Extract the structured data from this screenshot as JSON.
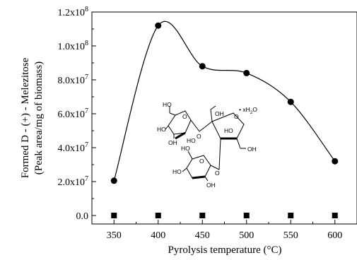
{
  "chart_data": {
    "type": "scatter",
    "xlabel": "Pyrolysis temperature (°C)",
    "ylabel_line1": "Formed D - (+) - Melezitose",
    "ylabel_line2": "(Peak area/mg of biomass)",
    "xlim": [
      325,
      625
    ],
    "ylim": [
      -5000000,
      120000000
    ],
    "x_ticks": [
      350,
      400,
      450,
      500,
      550,
      600
    ],
    "x_tick_labels": [
      "350",
      "400",
      "450",
      "500",
      "550",
      "600"
    ],
    "y_ticks": [
      0,
      20000000,
      40000000,
      60000000,
      80000000,
      100000000,
      120000000
    ],
    "y_tick_labels": [
      {
        "mantissa": "0.0",
        "exp": ""
      },
      {
        "mantissa": "2.0x10",
        "exp": "7"
      },
      {
        "mantissa": "4.0x10",
        "exp": "7"
      },
      {
        "mantissa": "6.0x10",
        "exp": "7"
      },
      {
        "mantissa": "8.0x10",
        "exp": "7"
      },
      {
        "mantissa": "1.0x10",
        "exp": "8"
      },
      {
        "mantissa": "1.2x10",
        "exp": "8"
      }
    ],
    "series": [
      {
        "marker": "circle",
        "smooth_line": true,
        "x": [
          350,
          400,
          450,
          500,
          550,
          600
        ],
        "y": [
          20500000,
          112000000,
          88000000,
          84000000,
          67000000,
          32000000
        ]
      },
      {
        "marker": "square",
        "smooth_line": false,
        "x": [
          350,
          400,
          450,
          500,
          550,
          600
        ],
        "y": [
          0,
          0,
          0,
          0,
          0,
          0
        ]
      }
    ],
    "grid": false,
    "legend": "none",
    "colors": {
      "marks": "#000000",
      "background": "#ffffff"
    }
  },
  "structure": {
    "hydrate_label": "• xH",
    "hydrate_sub": "2",
    "hydrate_tail": "O",
    "labels": {
      "ho_top": "HO",
      "ho_a": "HO",
      "oh_a": "OH",
      "ho_b": "HO",
      "o_ring_top": "O",
      "o_link1": "O",
      "oh_b": "OH",
      "ho_c": "HO",
      "o_ring_right": "O",
      "oh_c": "OH",
      "ho_d": "HO",
      "o_ring_bottom": "O",
      "ho_e": "HO",
      "oh_d": "OH",
      "o_link2": "O"
    }
  }
}
